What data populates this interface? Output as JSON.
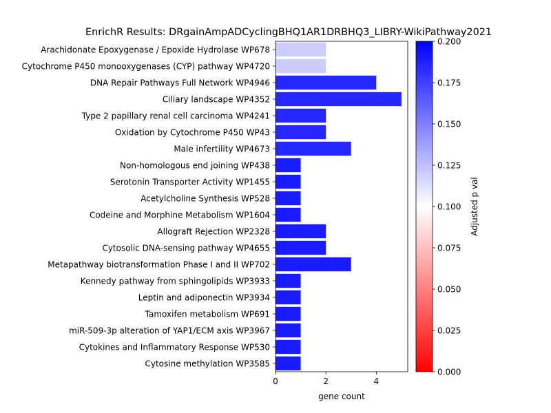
{
  "chart_data": {
    "type": "bar",
    "orientation": "horizontal",
    "title": "EnrichR Results: DRgainAmpADCyclingBHQ1AR1DRBHQ3_LIBRY-WikiPathway2021",
    "xlabel": "gene count",
    "ylabel": "",
    "xlim": [
      0,
      5.25
    ],
    "x_ticks": [
      0,
      2,
      4
    ],
    "grid": false,
    "categories": [
      "Arachidonate Epoxygenase / Epoxide Hydrolase WP678",
      "Cytochrome P450 monooxygenases (CYP) pathway WP4720",
      "DNA Repair Pathways Full Network WP4946",
      "Ciliary landscape WP4352",
      "Type 2 papillary renal cell carcinoma WP4241",
      "Oxidation by Cytochrome P450 WP43",
      "Male infertility WP4673",
      "Non-homologous end joining WP438",
      "Serotonin Transporter Activity WP1455",
      "Acetylcholine Synthesis WP528",
      "Codeine and Morphine Metabolism WP1604",
      "Allograft Rejection WP2328",
      "Cytosolic DNA-sensing pathway WP4655",
      "Metapathway biotransformation Phase I and II WP702",
      "Kennedy pathway from sphingolipids WP3933",
      "Leptin and adiponectin WP3934",
      "Tamoxifen metabolism WP691",
      "miR-509-3p alteration of YAP1/ECM axis WP3967",
      "Cytokines and Inflammatory Response WP530",
      "Cytosine methylation WP3585"
    ],
    "values": [
      2,
      2,
      4,
      5,
      2,
      2,
      3,
      1,
      1,
      1,
      1,
      2,
      2,
      3,
      1,
      1,
      1,
      1,
      1,
      1
    ],
    "adjusted_p": [
      0.12,
      0.12,
      0.185,
      0.185,
      0.185,
      0.185,
      0.185,
      0.19,
      0.19,
      0.19,
      0.19,
      0.19,
      0.19,
      0.19,
      0.19,
      0.19,
      0.19,
      0.19,
      0.19,
      0.19
    ],
    "colorbar": {
      "label": "Adjusted p val",
      "range": [
        0,
        0.2
      ],
      "ticks": [
        "0.000",
        "0.025",
        "0.050",
        "0.075",
        "0.100",
        "0.125",
        "0.150",
        "0.175",
        "0.200"
      ],
      "low_color": "#ff0000",
      "mid_color": "#ffffff",
      "high_color": "#0000ff"
    }
  }
}
